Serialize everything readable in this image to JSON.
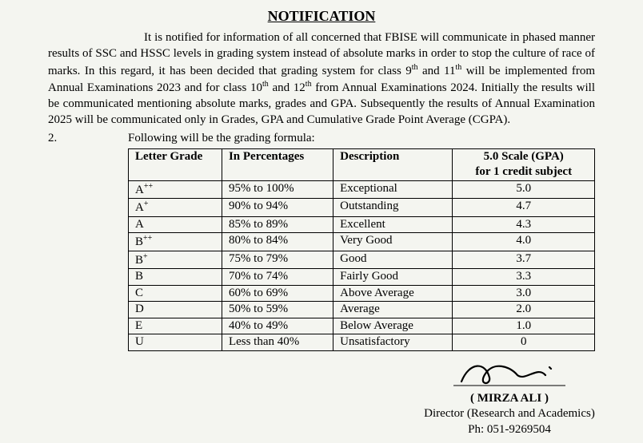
{
  "title": "NOTIFICATION",
  "para1_a": "It is notified for information of all concerned that FBISE will communicate in phased manner results of SSC and HSSC levels in grading system instead of absolute marks in order to stop the culture of race of marks. In this regard, it has been decided that grading system for class 9",
  "para1_b": " and 11",
  "para1_c": " will be implemented from Annual Examinations 2023 and for class 10",
  "para1_d": " and 12",
  "para1_e": " from Annual Examinations 2024. Initially the results will be communicated mentioning absolute marks, grades and GPA. Subsequently the results of Annual Examination 2025 will be communicated only in Grades, GPA and Cumulative Grade Point Average (CGPA).",
  "sup_th": "th",
  "para2_num": "2.",
  "para2_text": "Following will be the grading formula:",
  "table": {
    "headers": {
      "grade": "Letter Grade",
      "pct": "In Percentages",
      "desc": "Description",
      "gpa_l1": "5.0 Scale (GPA)",
      "gpa_l2": "for 1 credit subject"
    },
    "rows": [
      {
        "grade": "A",
        "grade_sup": "++",
        "pct": "95% to 100%",
        "desc": "Exceptional",
        "gpa": "5.0"
      },
      {
        "grade": "A",
        "grade_sup": "+",
        "pct": "90% to 94%",
        "desc": "Outstanding",
        "gpa": "4.7"
      },
      {
        "grade": "A",
        "grade_sup": "",
        "pct": "85% to 89%",
        "desc": "Excellent",
        "gpa": "4.3"
      },
      {
        "grade": "B",
        "grade_sup": "++",
        "pct": "80% to 84%",
        "desc": "Very Good",
        "gpa": "4.0"
      },
      {
        "grade": "B",
        "grade_sup": "+",
        "pct": "75% to 79%",
        "desc": "Good",
        "gpa": "3.7"
      },
      {
        "grade": "B",
        "grade_sup": "",
        "pct": "70% to 74%",
        "desc": "Fairly Good",
        "gpa": "3.3"
      },
      {
        "grade": "C",
        "grade_sup": "",
        "pct": "60% to 69%",
        "desc": "Above Average",
        "gpa": "3.0"
      },
      {
        "grade": "D",
        "grade_sup": "",
        "pct": "50% to 59%",
        "desc": "Average",
        "gpa": "2.0"
      },
      {
        "grade": "E",
        "grade_sup": "",
        "pct": "40% to 49%",
        "desc": "Below Average",
        "gpa": "1.0"
      },
      {
        "grade": "U",
        "grade_sup": "",
        "pct": "Less than 40%",
        "desc": "Unsatisfactory",
        "gpa": "0"
      }
    ]
  },
  "signature": {
    "name": "( MIRZA ALI )",
    "title": "Director (Research and Academics)",
    "phone": "Ph: 051-9269504"
  }
}
